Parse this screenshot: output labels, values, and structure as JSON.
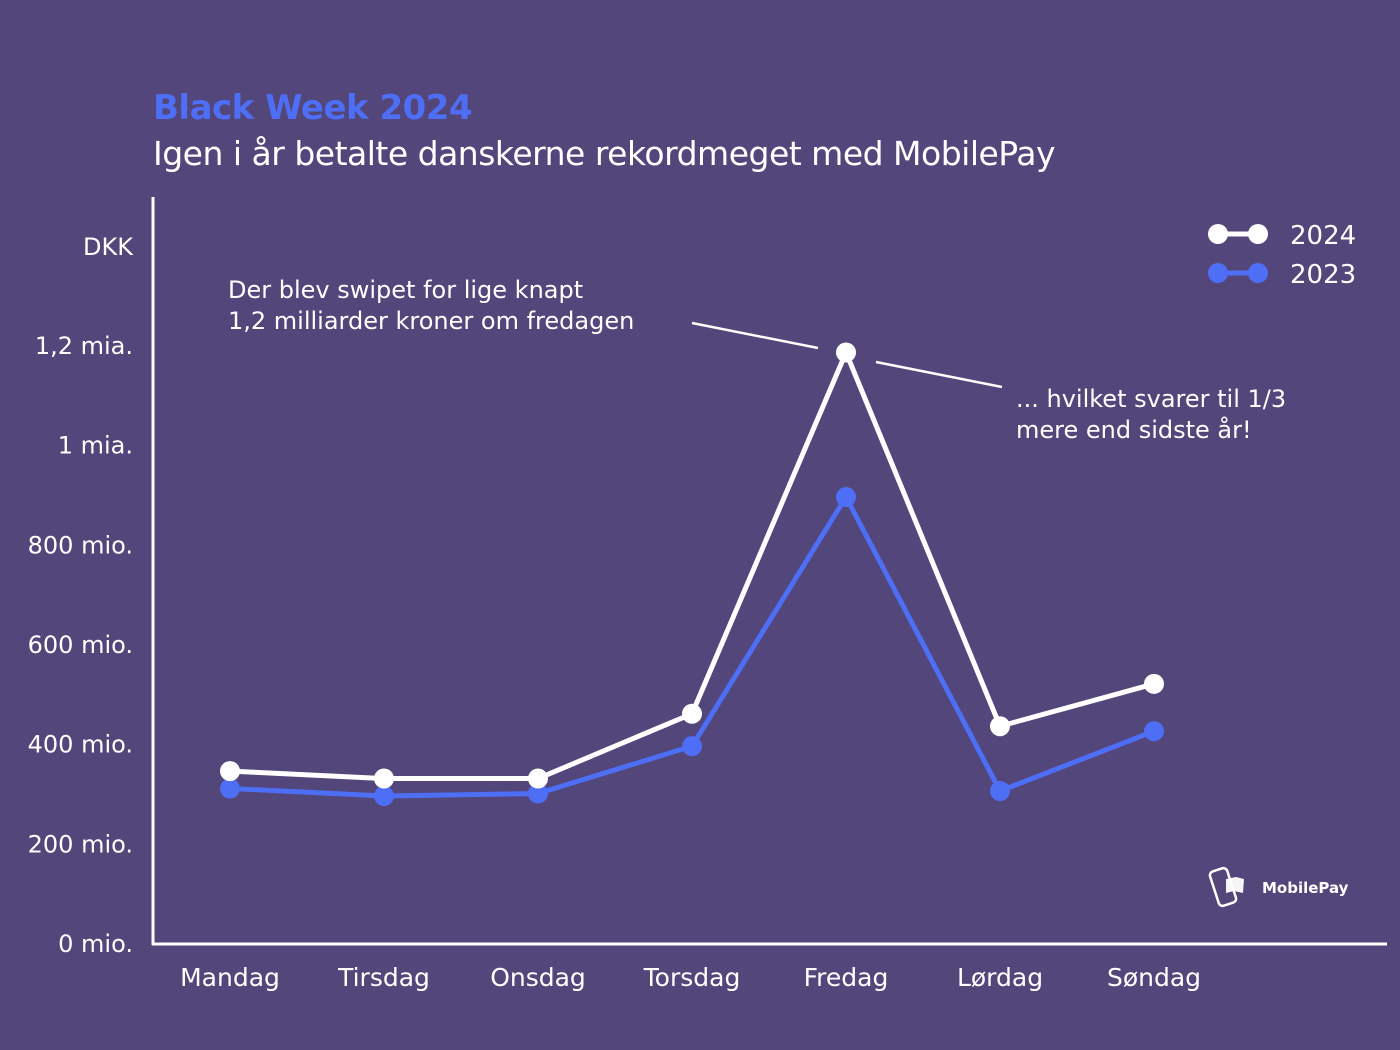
{
  "chart_data": {
    "type": "line",
    "title": "Black Week 2024",
    "subtitle": "Igen i år betalte danskerne rekordmeget med MobilePay",
    "ylabel": "DKK",
    "categories": [
      "Mandag",
      "Tirsdag",
      "Onsdag",
      "Torsdag",
      "Fredag",
      "Lørdag",
      "Søndag"
    ],
    "ylim": [
      0,
      1200
    ],
    "yticks": [
      0,
      200,
      400,
      600,
      800,
      1000,
      1200
    ],
    "ytick_labels": [
      "0 mio.",
      "200 mio.",
      "400 mio.",
      "600 mio.",
      "800 mio.",
      "1 mia.",
      "1,2 mia."
    ],
    "grid": false,
    "legend_position": "top-right",
    "series": [
      {
        "name": "2024",
        "color": "#ffffff",
        "values": [
          345,
          330,
          330,
          460,
          1185,
          435,
          520
        ]
      },
      {
        "name": "2023",
        "color": "#4d6ef5",
        "values": [
          310,
          295,
          300,
          395,
          895,
          305,
          425
        ]
      }
    ],
    "annotations": [
      {
        "lines": [
          "Der blev swipet for lige knapt",
          "1,2 milliarder kroner om fredagen"
        ]
      },
      {
        "lines": [
          "... hvilket svarer til 1/3",
          "mere end sidste år!"
        ]
      }
    ]
  },
  "logo": {
    "text": "MobilePay"
  },
  "colors": {
    "background": "#52467a",
    "accent": "#4d6ef5"
  }
}
